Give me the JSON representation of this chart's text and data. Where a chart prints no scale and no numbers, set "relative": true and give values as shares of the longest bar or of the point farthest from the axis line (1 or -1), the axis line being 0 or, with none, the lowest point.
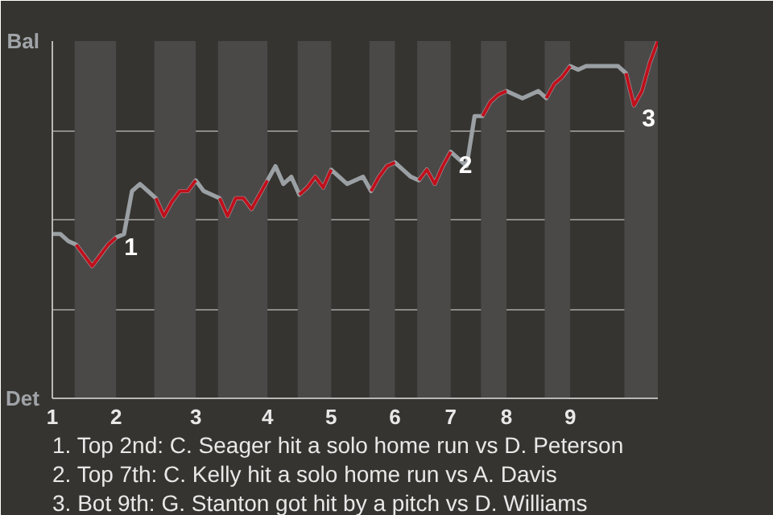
{
  "chart_data": {
    "type": "line",
    "relative": true,
    "categories": [
      "1",
      null,
      null,
      null,
      null,
      null,
      null,
      null,
      "2",
      null,
      null,
      null,
      null,
      null,
      null,
      null,
      null,
      null,
      "3",
      null,
      null,
      null,
      null,
      null,
      null,
      null,
      null,
      "4",
      null,
      null,
      null,
      null,
      null,
      null,
      null,
      "5",
      null,
      null,
      null,
      null,
      null,
      null,
      null,
      "6",
      null,
      null,
      null,
      null,
      null,
      null,
      "7",
      null,
      null,
      null,
      null,
      null,
      null,
      "8",
      null,
      null,
      null,
      null,
      null,
      null,
      null,
      "9",
      null,
      null,
      null,
      null,
      null,
      null,
      null,
      null,
      null,
      null,
      null
    ],
    "grid": "y",
    "line_style": "solid",
    "series": [
      {
        "color": "#9aa0a4",
        "values": [
          0.46,
          0.46,
          0.44,
          0.43,
          0.4,
          0.37,
          0.4,
          0.43,
          0.45,
          0.46,
          0.58,
          0.6,
          0.58,
          0.56,
          0.51,
          0.55,
          0.58,
          0.58,
          0.61,
          0.58,
          0.57,
          0.56,
          0.51,
          0.56,
          0.56,
          0.53,
          0.57,
          0.61,
          0.65,
          0.6,
          0.62,
          0.57,
          0.59,
          0.62,
          0.59,
          0.64,
          0.62,
          0.6,
          0.61,
          0.62,
          0.58,
          0.62,
          0.65,
          0.66,
          0.64,
          0.62,
          0.61,
          0.64,
          0.6,
          0.65,
          0.69,
          0.67,
          0.65,
          0.79,
          0.79,
          0.83,
          0.85,
          0.86,
          0.85,
          0.84,
          0.85,
          0.86,
          0.84,
          0.88,
          0.9,
          0.93,
          0.92,
          0.93,
          0.93,
          0.93,
          0.93,
          0.93,
          0.91,
          0.82,
          0.86,
          0.94,
          1.0
        ]
      },
      {
        "color": "#c0101c",
        "values": [
          null,
          null,
          null,
          0.43,
          0.4,
          0.37,
          0.4,
          0.43,
          0.45,
          null,
          null,
          null,
          null,
          0.56,
          0.51,
          0.55,
          0.58,
          0.58,
          0.61,
          null,
          null,
          0.56,
          0.51,
          0.56,
          0.56,
          0.53,
          0.57,
          0.61,
          null,
          null,
          null,
          0.57,
          0.59,
          0.62,
          0.59,
          0.64,
          null,
          null,
          null,
          null,
          0.58,
          0.62,
          0.65,
          0.66,
          null,
          null,
          0.61,
          0.64,
          0.6,
          0.65,
          0.69,
          null,
          null,
          null,
          0.79,
          0.83,
          0.85,
          0.86,
          null,
          null,
          null,
          null,
          0.84,
          0.88,
          0.9,
          0.93,
          null,
          null,
          null,
          null,
          null,
          null,
          0.91,
          0.82,
          0.86,
          0.94,
          1.0
        ]
      }
    ],
    "annotations": [
      "Bal",
      "Det",
      {
        "text": "1",
        "x": "2",
        "y": 0.46
      },
      {
        "text": "2",
        "x": "7",
        "y": 0.69
      },
      "3",
      "1. Top 2nd: C. Seager hit a solo home run vs D. Peterson",
      "2. Top 7th: C. Kelly hit a solo home run vs A. Davis",
      "3. Bot 9th: G. Stanton got hit by a pitch vs D. Williams"
    ]
  }
}
